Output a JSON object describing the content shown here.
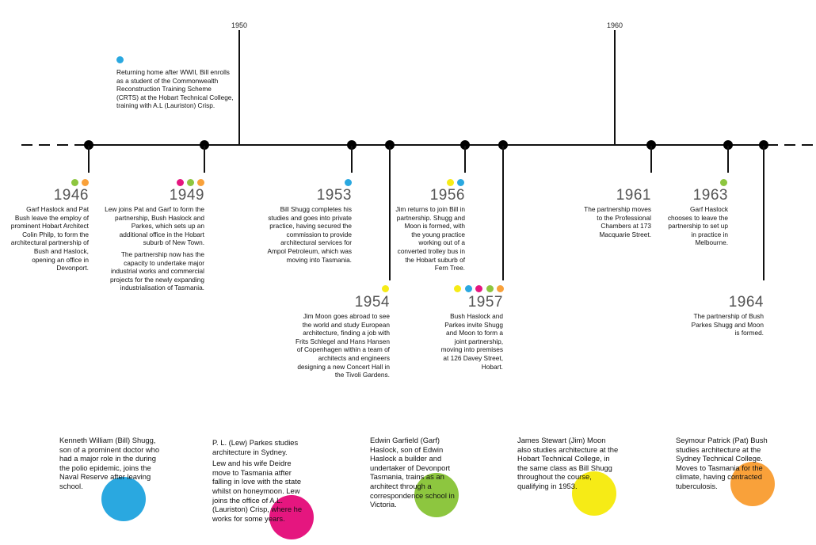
{
  "colors": {
    "bill": "#2aa8e0",
    "lew": "#e5167f",
    "garf": "#8dc63f",
    "jim": "#f6eb16",
    "pat": "#f9a13a"
  },
  "decades": [
    "1950",
    "1960"
  ],
  "intro": {
    "text": "Returning home after WWII, Bill enrolls as a student of the Commonwealth Reconstruction Training Scheme (CRTS) at the Hobart Technical College, training with A.L (Lauriston) Crisp."
  },
  "events": [
    {
      "year": "1946",
      "paragraphs": [
        "Garf Haslock and Pat Bush leave the employ of prominent Hobart Architect Colin Philp, to form the architectural partnership of Bush and Haslock, opening an office in Devonport."
      ]
    },
    {
      "year": "1949",
      "paragraphs": [
        "Lew joins Pat and Garf to form the partnership, Bush Haslock and Parkes, which sets up an additional office in the Hobart suburb of New Town.",
        "The partnership now has the capacity to undertake major industrial works and commercial projects for the newly expanding industrialisation of Tasmania."
      ]
    },
    {
      "year": "1953",
      "paragraphs": [
        "Bill Shugg completes his studies and goes into private practice, having secured the commission to provide architectural services for Ampol Petroleum, which was moving into Tasmania."
      ]
    },
    {
      "year": "1954",
      "paragraphs": [
        "Jim Moon goes abroad to see the world and study European architecture, finding a job with Frits Schlegel and Hans Hansen of Copenhagen within a team of architects and engineers designing a new Concert Hall in the Tivoli Gardens."
      ]
    },
    {
      "year": "1956",
      "paragraphs": [
        "Jim returns to join Bill in partnership. Shugg and Moon is formed, with the young practice working out of a converted trolley bus in the Hobart suburb of Fern Tree."
      ]
    },
    {
      "year": "1957",
      "paragraphs": [
        "Bush Haslock and Parkes invite Shugg and Moon to form a joint partnership, moving into premises at 126 Davey Street, Hobart."
      ]
    },
    {
      "year": "1961",
      "paragraphs": [
        "The partnership moves to the Professional Chambers at 173 Macquarie Street."
      ]
    },
    {
      "year": "1963",
      "paragraphs": [
        "Garf Haslock chooses to leave the partnership to set up in practice in Melbourne."
      ]
    },
    {
      "year": "1964",
      "paragraphs": [
        "The partnership of Bush Parkes Shugg and Moon is formed."
      ]
    }
  ],
  "bios": [
    {
      "paragraphs": [
        "Kenneth William (Bill) Shugg, son of a prominent doctor who had a major role in the during the polio epidemic, joins the Naval Reserve after leaving school."
      ]
    },
    {
      "paragraphs": [
        "P. L. (Lew) Parkes studies architecture in Sydney.",
        "Lew and his wife Deidre move to Tasmania atfter falling in love with the state whilst on honeymoon. Lew joins the office of A.L. (Lauriston) Crisp, where he works for some years."
      ]
    },
    {
      "paragraphs": [
        "Edwin Garfield (Garf) Haslock, son of Edwin Haslock a builder and undertaker of Devonport Tasmania, trains as an architect through a correspondence school in Victoria."
      ]
    },
    {
      "paragraphs": [
        "James Stewart (Jim) Moon also studies architecture at the Hobart Technical College, in the same class as Bill Shugg throughout the course, qualifying in 1953."
      ]
    },
    {
      "paragraphs": [
        "Seymour Patrick (Pat) Bush studies architecture at the Sydney Technical College. Moves to Tasmania for the climate, having contracted tuberculosis."
      ]
    }
  ]
}
